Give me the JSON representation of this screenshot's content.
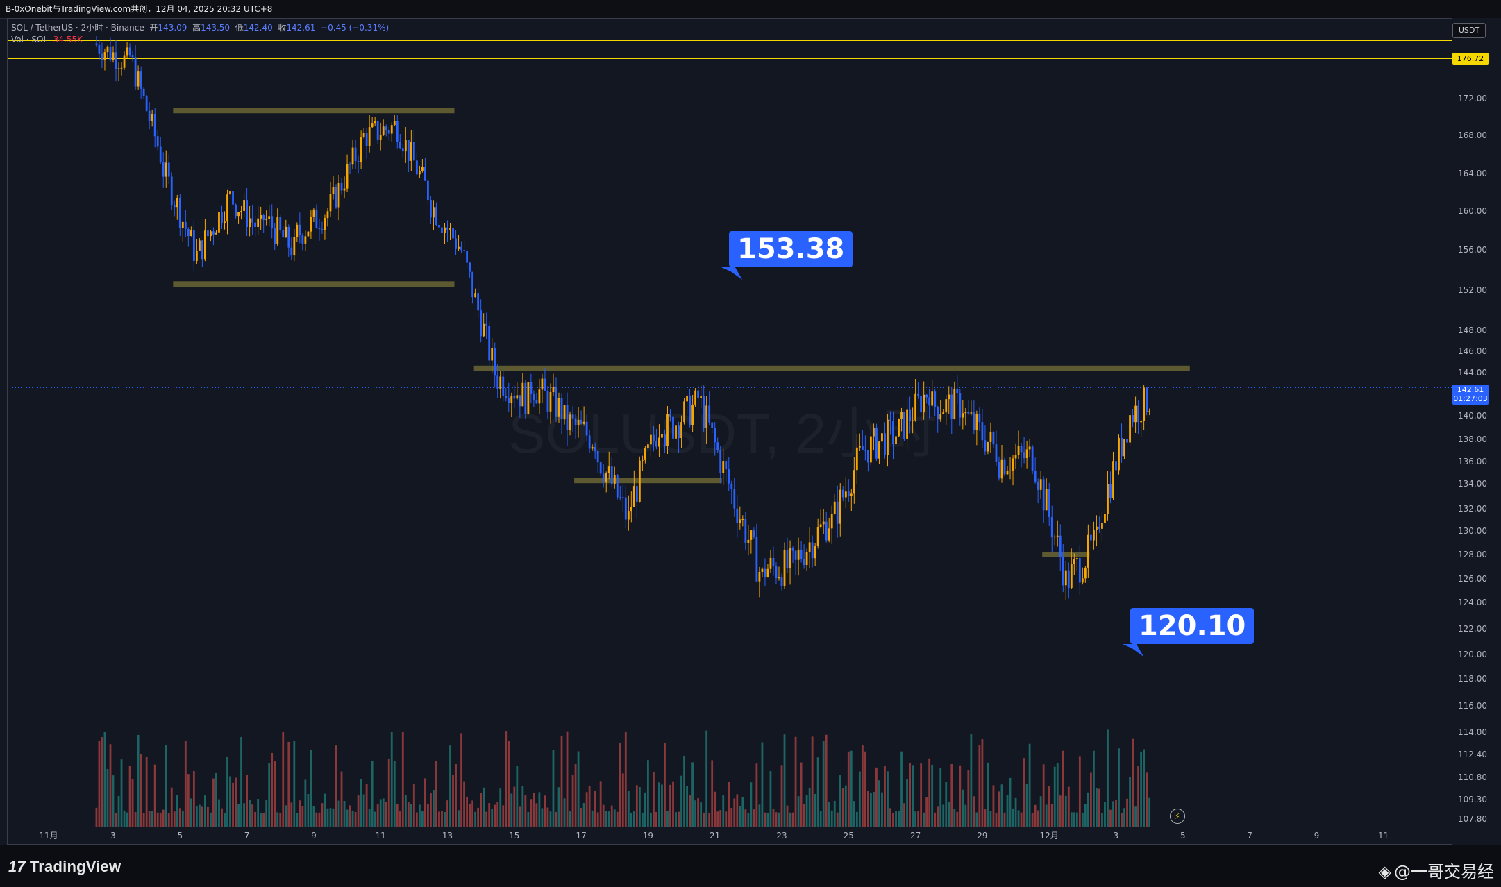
{
  "top_bar": {
    "title": "B-0xOnebit与TradingView.com共创，12月 04, 2025 20:32 UTC+8"
  },
  "legend": {
    "symbol": "SOL / TetherUS · 2小时 · Binance",
    "open_label": "开",
    "open_value": "143.09",
    "high_label": "高",
    "high_value": "143.50",
    "low_label": "低",
    "low_value": "142.40",
    "close_label": "收",
    "close_value": "142.61",
    "change": "−0.45 (−0.31%)",
    "volume_label": "Vol · SOL",
    "volume_value": "34.55K"
  },
  "watermark": "SOLUSDT, 2小时",
  "callouts": [
    {
      "label": "153.38"
    },
    {
      "label": "120.10"
    }
  ],
  "price_axis": {
    "currency": "USDT",
    "ticks": [
      "172.00",
      "168.00",
      "164.00",
      "160.00",
      "156.00",
      "152.00",
      "148.00",
      "146.00",
      "144.00",
      "140.00",
      "138.00",
      "136.00",
      "134.00",
      "132.00",
      "130.00",
      "128.00",
      "126.00",
      "124.00",
      "122.00",
      "120.00",
      "118.00",
      "116.00",
      "114.00",
      "112.40",
      "110.80",
      "109.30",
      "107.80"
    ],
    "horizontal_line_label": "176.72",
    "current_price": "142.61",
    "countdown": "01:27:03"
  },
  "time_axis": {
    "ticks": [
      "11月",
      "3",
      "5",
      "7",
      "9",
      "11",
      "13",
      "15",
      "17",
      "19",
      "21",
      "23",
      "25",
      "27",
      "29",
      "12月",
      "3",
      "5",
      "7",
      "9",
      "11"
    ]
  },
  "branding": {
    "logo_text": "TradingView",
    "author": "@一哥交易经"
  },
  "colors": {
    "background": "#131722",
    "up": "#f7a600",
    "down": "#2962ff",
    "volume_up": "#26a69a",
    "volume_down": "#ef5350",
    "zone": "#6b6532",
    "hline": "#f5d800",
    "callout": "#2962ff"
  },
  "chart_data": {
    "type": "candlestick",
    "title": "SOL / TetherUS · 2小时 · Binance",
    "y_unit": "USDT",
    "ylim": [
      107,
      178
    ],
    "horizontal_lines": [
      176.72,
      178.2
    ],
    "support_resistance_zones": [
      {
        "price": 170.7,
        "from": "Nov 5",
        "to": "Nov 13"
      },
      {
        "price": 152.6,
        "from": "Nov 5",
        "to": "Nov 13"
      },
      {
        "price": 144.4,
        "from": "Nov 14",
        "to": "Dec 5"
      },
      {
        "price": 134.3,
        "from": "Nov 17",
        "to": "Nov 21"
      },
      {
        "price": 128.0,
        "from": "Dec 1",
        "to": "Dec 2"
      }
    ],
    "annotations": [
      {
        "text": "153.38"
      },
      {
        "text": "120.10"
      }
    ],
    "approximate_closes": [
      {
        "date": "Nov 3",
        "close": 176.0
      },
      {
        "date": "Nov 4",
        "close": 166.0
      },
      {
        "date": "Nov 5",
        "close": 156.0
      },
      {
        "date": "Nov 6",
        "close": 161.0
      },
      {
        "date": "Nov 7",
        "close": 158.0
      },
      {
        "date": "Nov 8",
        "close": 156.0
      },
      {
        "date": "Nov 9",
        "close": 160.0
      },
      {
        "date": "Nov 10",
        "close": 167.0
      },
      {
        "date": "Nov 11",
        "close": 169.0
      },
      {
        "date": "Nov 12",
        "close": 162.0
      },
      {
        "date": "Nov 13",
        "close": 156.0
      },
      {
        "date": "Nov 14",
        "close": 144.0
      },
      {
        "date": "Nov 15",
        "close": 141.5
      },
      {
        "date": "Nov 16",
        "close": 140.5
      },
      {
        "date": "Nov 17",
        "close": 138.0
      },
      {
        "date": "Nov 18",
        "close": 131.0
      },
      {
        "date": "Nov 19",
        "close": 140.0
      },
      {
        "date": "Nov 20",
        "close": 141.0
      },
      {
        "date": "Nov 21",
        "close": 134.0
      },
      {
        "date": "Nov 22",
        "close": 126.0
      },
      {
        "date": "Nov 23",
        "close": 127.0
      },
      {
        "date": "Nov 24",
        "close": 131.0
      },
      {
        "date": "Nov 25",
        "close": 137.0
      },
      {
        "date": "Nov 26",
        "close": 138.5
      },
      {
        "date": "Nov 27",
        "close": 142.5
      },
      {
        "date": "Nov 28",
        "close": 141.0
      },
      {
        "date": "Nov 29",
        "close": 137.0
      },
      {
        "date": "Nov 30",
        "close": 136.5
      },
      {
        "date": "Dec 1",
        "close": 127.0
      },
      {
        "date": "Dec 2",
        "close": 129.0
      },
      {
        "date": "Dec 3",
        "close": 140.0
      },
      {
        "date": "Dec 4",
        "close": 142.61
      }
    ]
  }
}
